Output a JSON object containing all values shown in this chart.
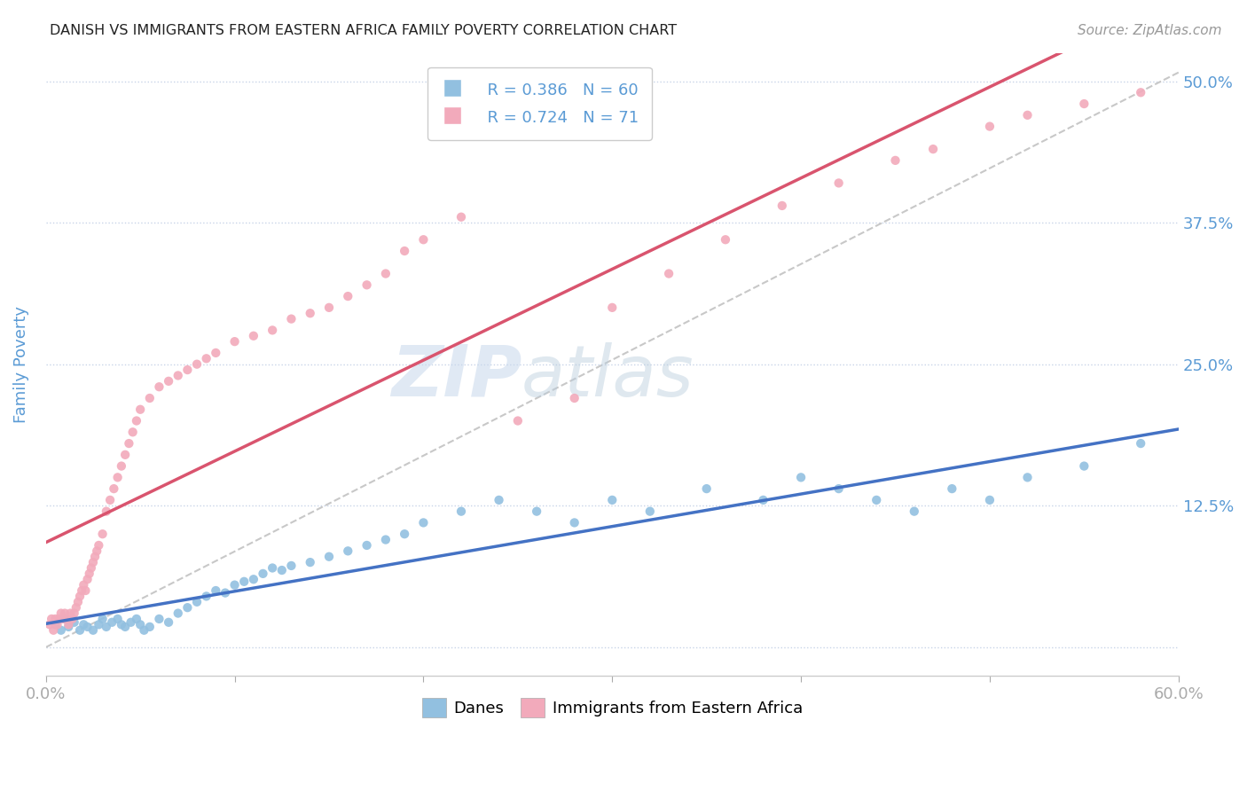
{
  "title": "DANISH VS IMMIGRANTS FROM EASTERN AFRICA FAMILY POVERTY CORRELATION CHART",
  "source": "Source: ZipAtlas.com",
  "ylabel": "Family Poverty",
  "xlabel": "",
  "xlim": [
    0,
    0.6
  ],
  "ylim": [
    -0.025,
    0.525
  ],
  "blue_color": "#92c0e0",
  "pink_color": "#f2aabb",
  "blue_line_color": "#4472c4",
  "pink_line_color": "#d9546e",
  "ref_line_color": "#c8c8c8",
  "legend_R1": "R = 0.386",
  "legend_N1": "N = 60",
  "legend_R2": "R = 0.724",
  "legend_N2": "N = 71",
  "legend_label1": "Danes",
  "legend_label2": "Immigrants from Eastern Africa",
  "watermark_zip": "ZIP",
  "watermark_atlas": "atlas",
  "title_color": "#222222",
  "axis_label_color": "#5b9bd5",
  "tick_color": "#5b9bd5",
  "blue_scatter_x": [
    0.005,
    0.008,
    0.01,
    0.012,
    0.015,
    0.018,
    0.02,
    0.022,
    0.025,
    0.028,
    0.03,
    0.032,
    0.035,
    0.038,
    0.04,
    0.042,
    0.045,
    0.048,
    0.05,
    0.052,
    0.055,
    0.06,
    0.065,
    0.07,
    0.075,
    0.08,
    0.085,
    0.09,
    0.095,
    0.1,
    0.105,
    0.11,
    0.115,
    0.12,
    0.125,
    0.13,
    0.14,
    0.15,
    0.16,
    0.17,
    0.18,
    0.19,
    0.2,
    0.22,
    0.24,
    0.26,
    0.28,
    0.3,
    0.32,
    0.35,
    0.38,
    0.4,
    0.42,
    0.44,
    0.46,
    0.48,
    0.5,
    0.52,
    0.55,
    0.58
  ],
  "blue_scatter_y": [
    0.02,
    0.015,
    0.025,
    0.018,
    0.022,
    0.015,
    0.02,
    0.018,
    0.015,
    0.02,
    0.025,
    0.018,
    0.022,
    0.025,
    0.02,
    0.018,
    0.022,
    0.025,
    0.02,
    0.015,
    0.018,
    0.025,
    0.022,
    0.03,
    0.035,
    0.04,
    0.045,
    0.05,
    0.048,
    0.055,
    0.058,
    0.06,
    0.065,
    0.07,
    0.068,
    0.072,
    0.075,
    0.08,
    0.085,
    0.09,
    0.095,
    0.1,
    0.11,
    0.12,
    0.13,
    0.12,
    0.11,
    0.13,
    0.12,
    0.14,
    0.13,
    0.15,
    0.14,
    0.13,
    0.12,
    0.14,
    0.13,
    0.15,
    0.16,
    0.18
  ],
  "pink_scatter_x": [
    0.002,
    0.003,
    0.004,
    0.005,
    0.006,
    0.007,
    0.008,
    0.009,
    0.01,
    0.011,
    0.012,
    0.013,
    0.014,
    0.015,
    0.016,
    0.017,
    0.018,
    0.019,
    0.02,
    0.021,
    0.022,
    0.023,
    0.024,
    0.025,
    0.026,
    0.027,
    0.028,
    0.03,
    0.032,
    0.034,
    0.036,
    0.038,
    0.04,
    0.042,
    0.044,
    0.046,
    0.048,
    0.05,
    0.055,
    0.06,
    0.065,
    0.07,
    0.075,
    0.08,
    0.085,
    0.09,
    0.1,
    0.11,
    0.12,
    0.13,
    0.14,
    0.15,
    0.16,
    0.17,
    0.18,
    0.19,
    0.2,
    0.22,
    0.25,
    0.28,
    0.3,
    0.33,
    0.36,
    0.39,
    0.42,
    0.45,
    0.47,
    0.5,
    0.52,
    0.55,
    0.58
  ],
  "pink_scatter_y": [
    0.02,
    0.025,
    0.015,
    0.025,
    0.02,
    0.025,
    0.03,
    0.025,
    0.03,
    0.025,
    0.02,
    0.03,
    0.025,
    0.03,
    0.035,
    0.04,
    0.045,
    0.05,
    0.055,
    0.05,
    0.06,
    0.065,
    0.07,
    0.075,
    0.08,
    0.085,
    0.09,
    0.1,
    0.12,
    0.13,
    0.14,
    0.15,
    0.16,
    0.17,
    0.18,
    0.19,
    0.2,
    0.21,
    0.22,
    0.23,
    0.235,
    0.24,
    0.245,
    0.25,
    0.255,
    0.26,
    0.27,
    0.275,
    0.28,
    0.29,
    0.295,
    0.3,
    0.31,
    0.32,
    0.33,
    0.35,
    0.36,
    0.38,
    0.2,
    0.22,
    0.3,
    0.33,
    0.36,
    0.39,
    0.41,
    0.43,
    0.44,
    0.46,
    0.47,
    0.48,
    0.49
  ]
}
